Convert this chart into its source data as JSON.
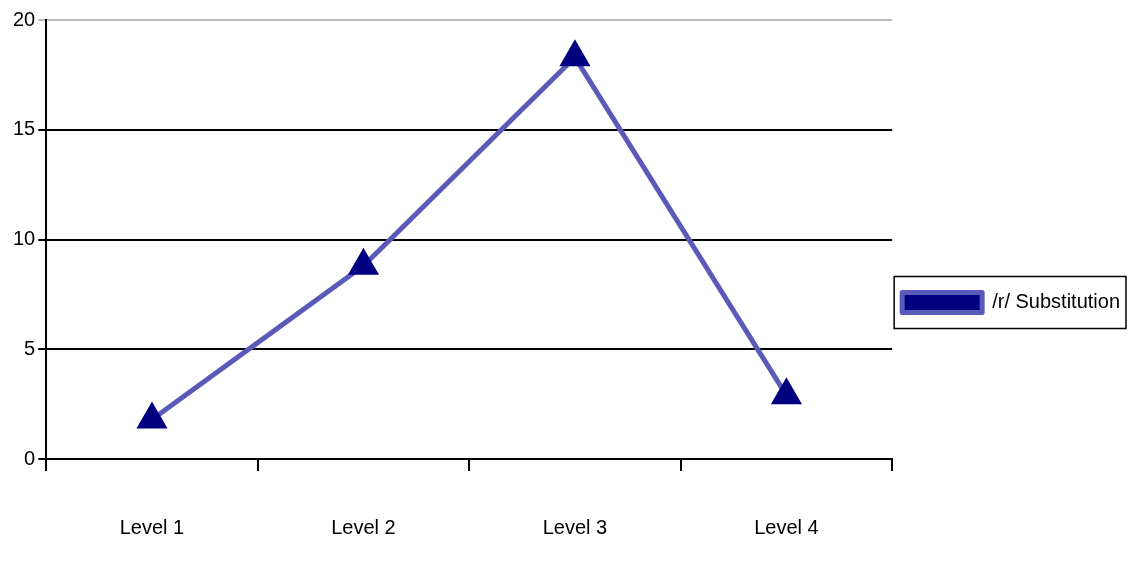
{
  "chart_data": {
    "type": "line",
    "categories": [
      "Level 1",
      "Level 2",
      "Level 3",
      "Level 4"
    ],
    "series": [
      {
        "name": "/r/ Substitution",
        "color": "#000080",
        "values": [
          1.8,
          8.8,
          18.3,
          2.9
        ]
      }
    ],
    "ylim": [
      0,
      20
    ],
    "yticks": [
      0,
      5,
      10,
      15,
      20
    ],
    "grid": "y",
    "legend": "right",
    "marker": "triangle",
    "line_style": "solid"
  }
}
